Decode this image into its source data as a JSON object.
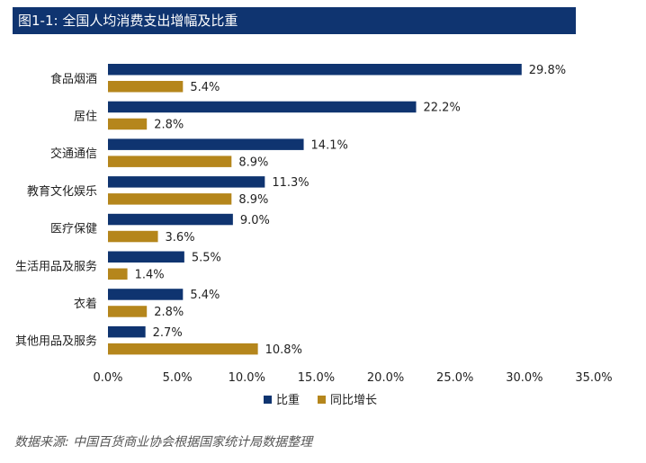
{
  "chart_data": {
    "type": "bar",
    "orientation": "horizontal",
    "title": "图1-1: 全国人均消费支出增幅及比重",
    "categories": [
      "食品烟酒",
      "居住",
      "交通通信",
      "教育文化娱乐",
      "医疗保健",
      "生活用品及服务",
      "衣着",
      "其他用品及服务"
    ],
    "series": [
      {
        "name": "比重",
        "color": "#0f3470",
        "values": [
          29.8,
          22.2,
          14.1,
          11.3,
          9.0,
          5.5,
          5.4,
          2.7
        ]
      },
      {
        "name": "同比增长",
        "color": "#b5861c",
        "values": [
          5.4,
          2.8,
          8.9,
          8.9,
          3.6,
          1.4,
          2.8,
          10.8
        ]
      }
    ],
    "value_format_decimals": 1,
    "value_suffix": "%",
    "xlim": [
      0,
      35
    ],
    "xticks": [
      0,
      5,
      10,
      15,
      20,
      25,
      30,
      35
    ],
    "xtick_labels": [
      "0.0%",
      "5.0%",
      "10.0%",
      "15.0%",
      "20.0%",
      "25.0%",
      "30.0%",
      "35.0%"
    ],
    "legend_position": "bottom-center",
    "grid": false
  },
  "source_note": "数据来源: 中国百货商业协会根据国家统计局数据整理"
}
